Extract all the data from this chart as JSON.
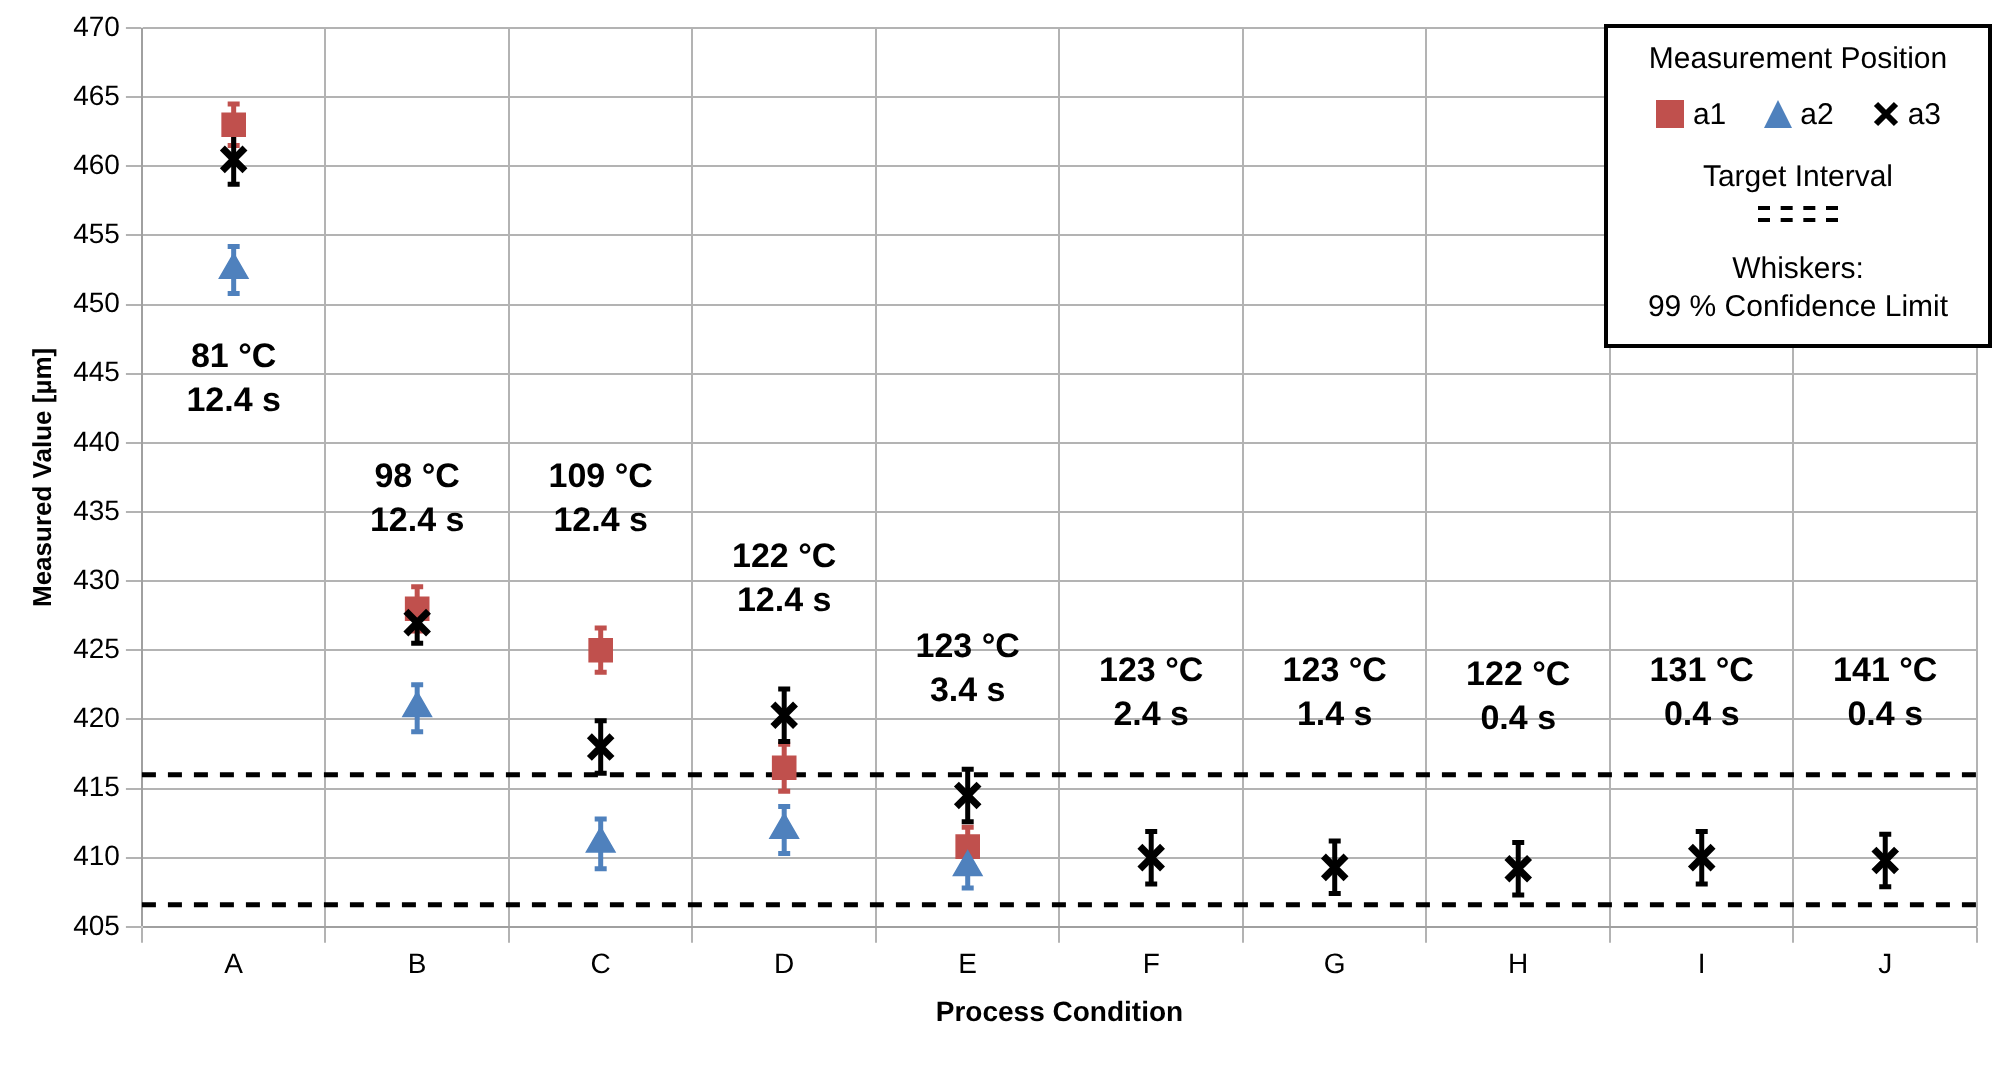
{
  "chart_data": {
    "type": "scatter",
    "xlabel": "Process Condition",
    "ylabel": "Measured Value [µm]",
    "legend_title": "Measurement Position",
    "legend": "top right",
    "grid": true,
    "categories": [
      "A",
      "B",
      "C",
      "D",
      "E",
      "F",
      "G",
      "H",
      "I",
      "J"
    ],
    "ylim": [
      405,
      470
    ],
    "yticks": [
      405,
      410,
      415,
      420,
      425,
      430,
      435,
      440,
      445,
      450,
      455,
      460,
      465,
      470
    ],
    "series": [
      {
        "name": "a1",
        "color": "#c0504d",
        "marker": "square",
        "values": [
          463,
          428,
          425,
          416.5,
          410.8,
          null,
          null,
          null,
          null,
          null
        ],
        "errors": [
          1.5,
          1.6,
          1.6,
          1.7,
          1.4,
          null,
          null,
          null,
          null,
          null
        ]
      },
      {
        "name": "a2",
        "color": "#4f81bd",
        "marker": "triangle",
        "values": [
          452.5,
          420.8,
          411,
          412,
          409.3,
          null,
          null,
          null,
          null,
          null
        ],
        "errors": [
          1.7,
          1.7,
          1.8,
          1.7,
          1.5,
          null,
          null,
          null,
          null,
          null
        ]
      },
      {
        "name": "a3",
        "color": "#000000",
        "marker": "cross",
        "values": [
          460.5,
          427,
          418,
          420.3,
          414.5,
          410,
          409.3,
          409.2,
          410,
          409.8
        ],
        "errors": [
          1.8,
          1.5,
          1.9,
          1.9,
          1.9,
          1.9,
          1.9,
          1.9,
          1.9,
          1.9
        ]
      }
    ],
    "ref_lines": [
      {
        "axis": "y",
        "value": 416,
        "color": "#000000",
        "line_style": "dashed"
      },
      {
        "axis": "y",
        "value": 406.6,
        "color": "#000000",
        "line_style": "dashed"
      }
    ],
    "annotations": [
      "81 °C\n12.4 s",
      "98 °C\n12.4 s",
      "109 °C\n12.4 s",
      "122 °C\n12.4 s",
      "123 °C\n3.4 s",
      "123 °C\n2.4 s",
      "123 °C\n1.4 s",
      "122 °C\n0.4 s",
      "131 °C\n0.4 s",
      "141 °C\n0.4 s",
      "Target Interval",
      "Whiskers:\n99 % Confidence Limit"
    ]
  }
}
